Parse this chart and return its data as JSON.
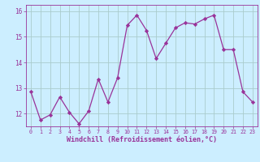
{
  "x": [
    0,
    1,
    2,
    3,
    4,
    5,
    6,
    7,
    8,
    9,
    10,
    11,
    12,
    13,
    14,
    15,
    16,
    17,
    18,
    19,
    20,
    21,
    22,
    23
  ],
  "y": [
    12.85,
    11.75,
    11.95,
    12.65,
    12.05,
    11.6,
    12.1,
    13.35,
    12.45,
    13.4,
    15.45,
    15.85,
    15.25,
    14.15,
    14.75,
    15.35,
    15.55,
    15.5,
    15.7,
    15.85,
    14.5,
    14.5,
    12.85,
    12.45
  ],
  "line_color": "#993399",
  "marker": "D",
  "marker_size": 2.2,
  "bg_color": "#cceeff",
  "grid_color": "#aacccc",
  "xlabel": "Windchill (Refroidissement éolien,°C)",
  "xlabel_color": "#993399",
  "tick_color": "#993399",
  "ylim": [
    11.5,
    16.25
  ],
  "yticks": [
    12,
    13,
    14,
    15,
    16
  ],
  "title": ""
}
